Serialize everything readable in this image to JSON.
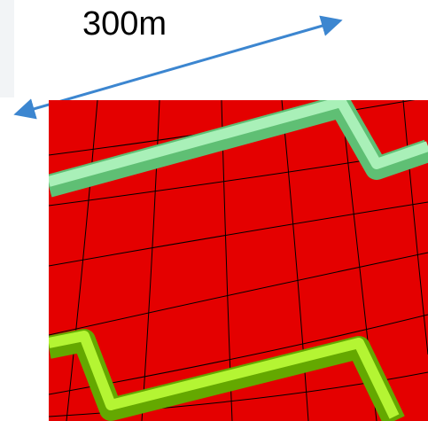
{
  "scale": {
    "label": "300m"
  },
  "colors": {
    "ground": "#e40000",
    "grid_line": "#000000",
    "upper_tube": "#86e39a",
    "lower_tube": "#8fe000",
    "arrow": "#3c86d0"
  }
}
